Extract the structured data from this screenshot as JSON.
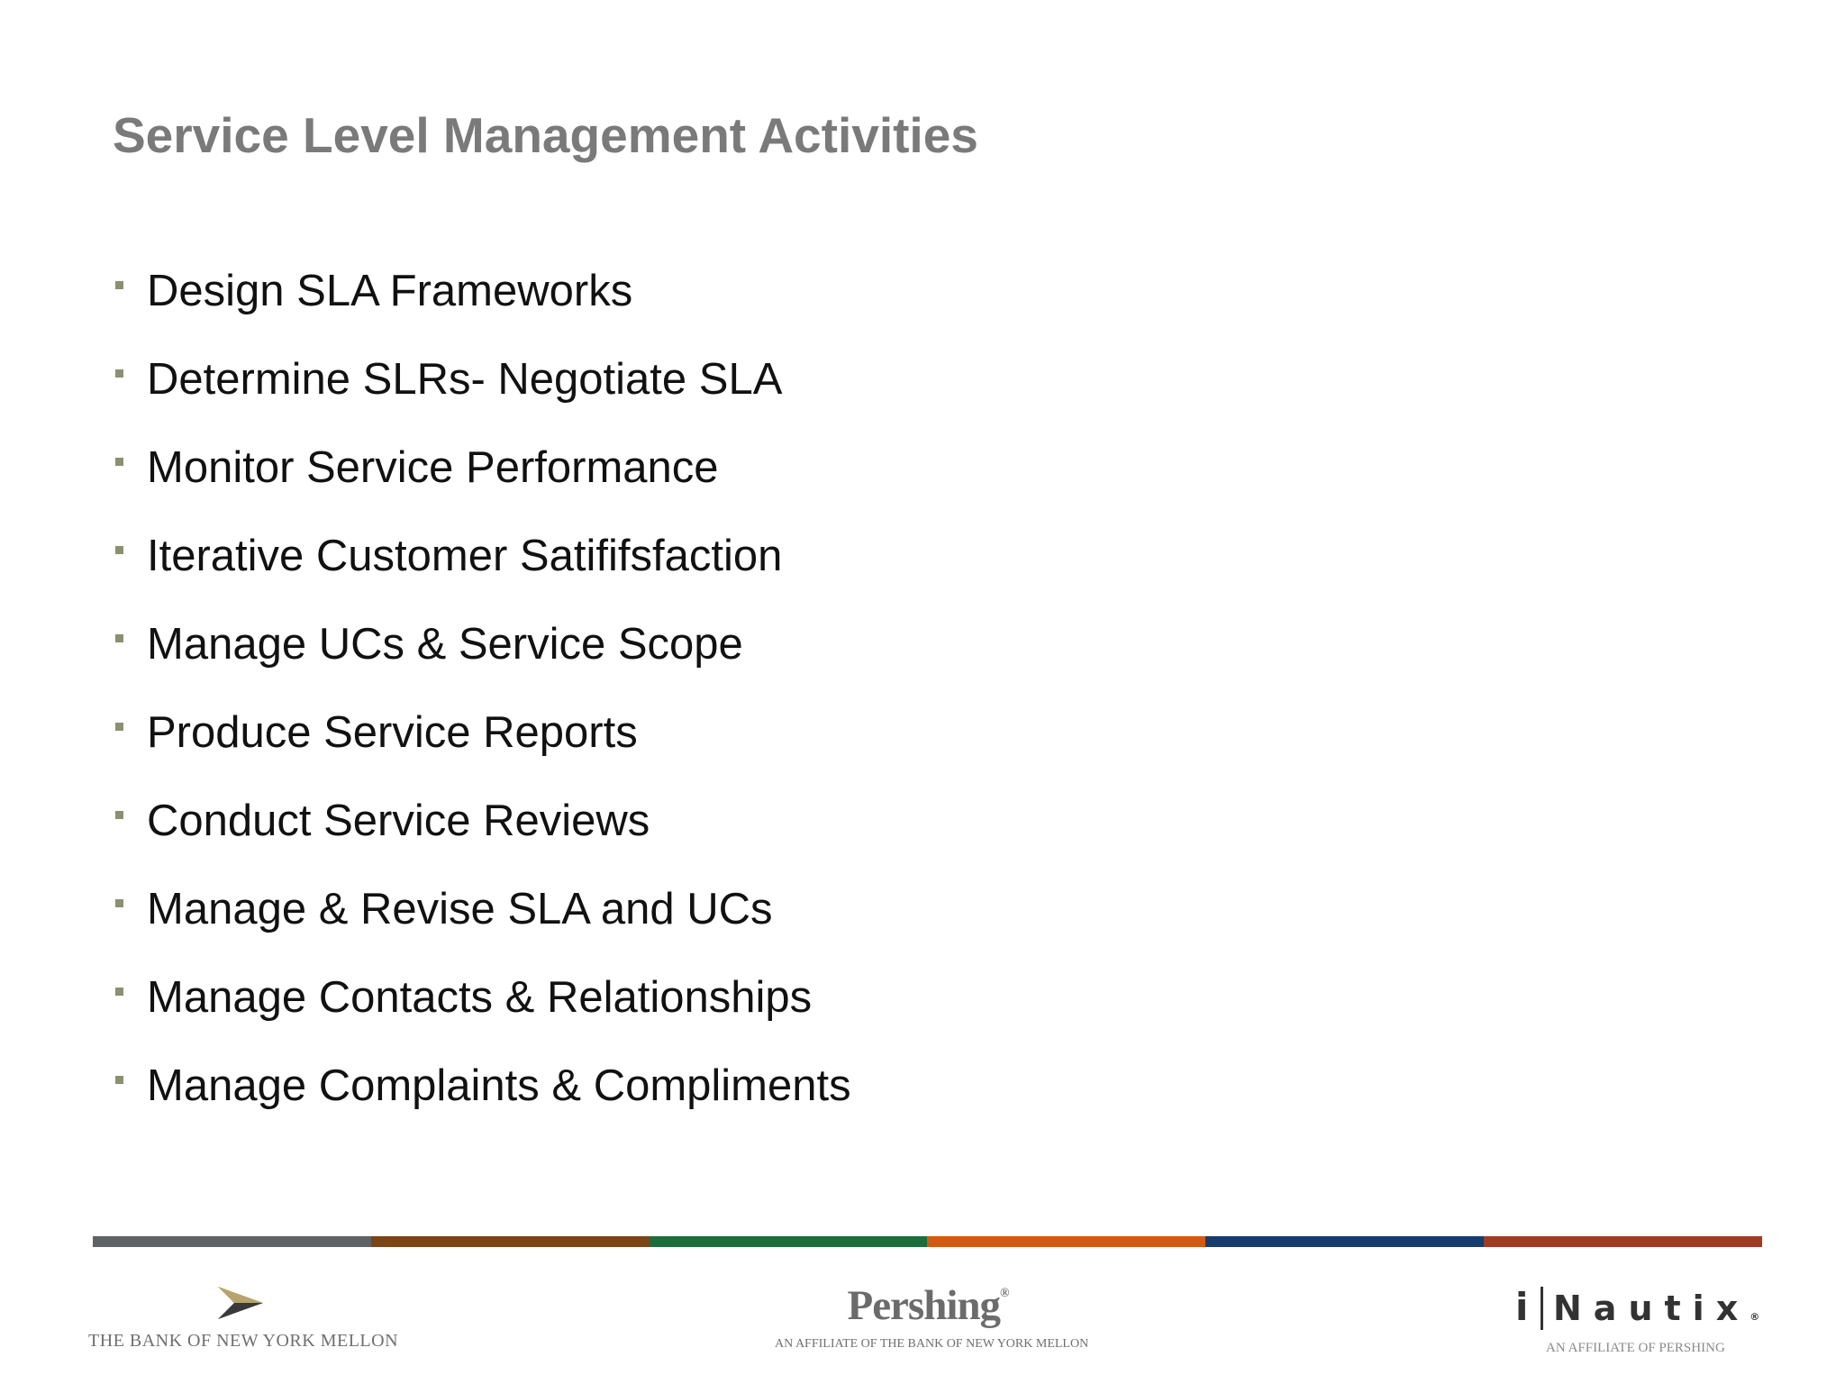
{
  "slide": {
    "title": "Service Level Management Activities",
    "bullet_color": "#8a9070",
    "text_color": "#111111",
    "title_color": "#7a7a7a",
    "bullets": [
      "Design SLA Frameworks",
      "Determine SLRs- Negotiate  SLA",
      "Monitor Service Performance",
      "Iterative Customer Satififsfaction",
      "Manage UCs & Service Scope",
      "Produce Service Reports",
      "Conduct Service Reviews",
      "Manage & Revise SLA and UCs",
      "Manage Contacts & Relationships",
      "Manage Complaints & Compliments"
    ]
  },
  "footer": {
    "stripe_colors": [
      "#5f6366",
      "#7b4517",
      "#1b6e3c",
      "#d35a10",
      "#163c6e",
      "#a13a22"
    ],
    "logos": {
      "bny_mellon": {
        "text": "THE BANK OF NEW YORK MELLON",
        "icon": "arrow-emblem-icon"
      },
      "pershing": {
        "name": "Pershing",
        "registered": "®",
        "tagline": "AN AFFILIATE OF THE BANK OF NEW YORK MELLON"
      },
      "inautix": {
        "i": "i",
        "name": "Nautix",
        "registered": "®",
        "tagline": "AN AFFILIATE OF PERSHING"
      }
    }
  }
}
